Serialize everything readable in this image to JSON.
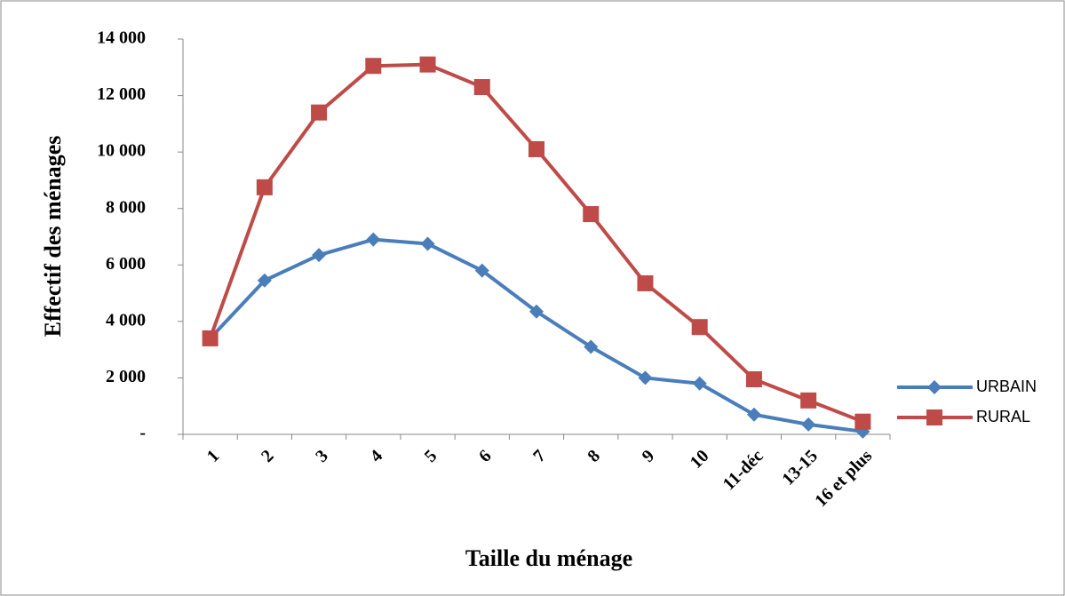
{
  "chart_data": {
    "type": "line",
    "xlabel": "Taille du ménage",
    "ylabel": "Effectif des ménages",
    "categories": [
      "1",
      "2",
      "3",
      "4",
      "5",
      "6",
      "7",
      "8",
      "9",
      "10",
      "11-déc",
      "13-15",
      "16 et plus"
    ],
    "series": [
      {
        "name": "URBAIN",
        "color": "#4a7ebb",
        "marker": "diamond",
        "values": [
          3400,
          5450,
          6350,
          6900,
          6750,
          5800,
          4350,
          3100,
          2000,
          1800,
          700,
          350,
          100
        ]
      },
      {
        "name": "RURAL",
        "color": "#be4b48",
        "marker": "square",
        "values": [
          3400,
          8750,
          11400,
          13050,
          13100,
          12300,
          10100,
          7800,
          5350,
          3800,
          1950,
          1200,
          450
        ]
      }
    ],
    "ylim": [
      0,
      14000
    ],
    "yticks": [
      {
        "value": 0,
        "label": "-"
      },
      {
        "value": 2000,
        "label": "2 000"
      },
      {
        "value": 4000,
        "label": "4 000"
      },
      {
        "value": 6000,
        "label": "6 000"
      },
      {
        "value": 8000,
        "label": "8 000"
      },
      {
        "value": 10000,
        "label": "10 000"
      },
      {
        "value": 12000,
        "label": "12 000"
      },
      {
        "value": 14000,
        "label": "14 000"
      }
    ],
    "grid": false,
    "legend": "right"
  }
}
